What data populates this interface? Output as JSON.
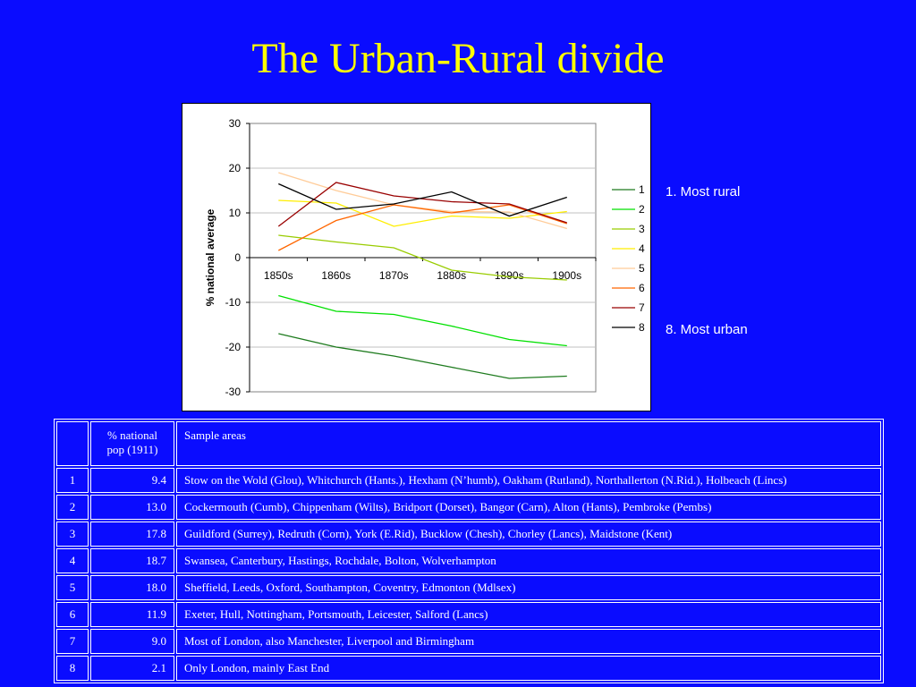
{
  "title": "The Urban-Rural divide",
  "side_notes": {
    "most_rural": "1. Most rural",
    "most_urban": "8. Most urban"
  },
  "chart_data": {
    "type": "line",
    "title": "",
    "xlabel": "",
    "ylabel": "% national average",
    "ylim": [
      -30,
      30
    ],
    "yticks": [
      -30,
      -20,
      -10,
      0,
      10,
      20,
      30
    ],
    "grid": "horizontal",
    "legend_position": "right",
    "categories": [
      "1850s",
      "1860s",
      "1870s",
      "1880s",
      "1890s",
      "1900s"
    ],
    "series": [
      {
        "name": "1",
        "color": "#1e7b1e",
        "values": [
          -17,
          -20,
          -22,
          -24.5,
          -27,
          -26.5
        ]
      },
      {
        "name": "2",
        "color": "#00e000",
        "values": [
          -8.5,
          -12,
          -12.7,
          -15.3,
          -18.3,
          -19.7
        ]
      },
      {
        "name": "3",
        "color": "#99cc00",
        "values": [
          5,
          3.5,
          2.2,
          -2.8,
          -4.3,
          -5
        ]
      },
      {
        "name": "4",
        "color": "#ffee00",
        "values": [
          12.8,
          12.2,
          7,
          9.3,
          8.8,
          10.3
        ]
      },
      {
        "name": "5",
        "color": "#ffcc99",
        "values": [
          19,
          15,
          11.8,
          10.3,
          10.2,
          6.5
        ]
      },
      {
        "name": "6",
        "color": "#ff6600",
        "values": [
          1.6,
          8.3,
          11.8,
          10,
          11.8,
          7.6
        ]
      },
      {
        "name": "7",
        "color": "#990000",
        "values": [
          7,
          16.8,
          13.8,
          12.5,
          12,
          7.8
        ]
      },
      {
        "name": "8",
        "color": "#000000",
        "values": [
          16.5,
          10.8,
          12,
          14.7,
          9.3,
          13.5
        ]
      }
    ]
  },
  "table": {
    "header": {
      "num": "",
      "pop": "% national pop (1911)",
      "areas": "Sample areas"
    },
    "rows": [
      {
        "num": "1",
        "pop": "9.4",
        "areas": "Stow on the Wold (Glou), Whitchurch (Hants.), Hexham (N’humb),  Oakham (Rutland), Northallerton (N.Rid.), Holbeach (Lincs)"
      },
      {
        "num": "2",
        "pop": "13.0",
        "areas": "Cockermouth (Cumb), Chippenham (Wilts), Bridport (Dorset), Bangor (Carn), Alton (Hants), Pembroke (Pembs)"
      },
      {
        "num": "3",
        "pop": "17.8",
        "areas": "Guildford (Surrey), Redruth (Corn), York (E.Rid), Bucklow (Chesh), Chorley (Lancs), Maidstone (Kent)"
      },
      {
        "num": "4",
        "pop": "18.7",
        "areas": "Swansea, Canterbury, Hastings, Rochdale, Bolton, Wolverhampton"
      },
      {
        "num": "5",
        "pop": "18.0",
        "areas": "Sheffield, Leeds, Oxford, Southampton, Coventry, Edmonton (Mdlsex)"
      },
      {
        "num": "6",
        "pop": "11.9",
        "areas": "Exeter, Hull, Nottingham, Portsmouth, Leicester, Salford (Lancs)"
      },
      {
        "num": "7",
        "pop": "9.0",
        "areas": "Most of London, also Manchester, Liverpool and Birmingham"
      },
      {
        "num": "8",
        "pop": "2.1",
        "areas": "Only London, mainly East End"
      }
    ]
  }
}
